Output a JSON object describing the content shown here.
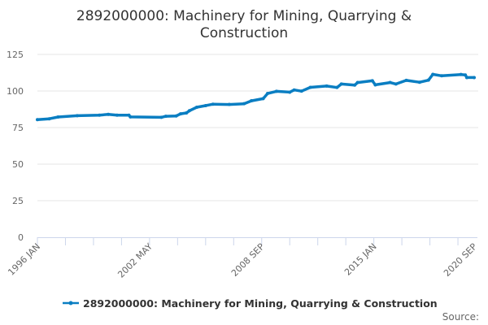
{
  "chart_data": {
    "type": "line",
    "title_lines": [
      "2892000000: Machinery for Mining, Quarrying &",
      "Construction"
    ],
    "xlabel": "",
    "ylabel": "",
    "ylim": [
      0,
      125
    ],
    "yticks": [
      0,
      25,
      50,
      75,
      100,
      125
    ],
    "xrange": [
      "1996-01",
      "2020-09"
    ],
    "xticks": [
      {
        "date": "1996-01",
        "label": "1996 JAN"
      },
      {
        "date": "2002-05",
        "label": "2002 MAY"
      },
      {
        "date": "2008-09",
        "label": "2008 SEP"
      },
      {
        "date": "2015-01",
        "label": "2015 JAN"
      },
      {
        "date": "2020-09",
        "label": "2020 SEP"
      }
    ],
    "grid": true,
    "legend_position": "bottom",
    "series": [
      {
        "name": "2892000000: Machinery for Mining, Quarrying & Construction",
        "color": "#0a7ec2",
        "points": [
          [
            "1996-01",
            80.4
          ],
          [
            "1996-09",
            81.0
          ],
          [
            "1997-03",
            82.2
          ],
          [
            "1998-04",
            83.1
          ],
          [
            "1999-07",
            83.5
          ],
          [
            "2000-01",
            84.0
          ],
          [
            "2000-07",
            83.5
          ],
          [
            "2001-03",
            83.5
          ],
          [
            "2001-04",
            82.3
          ],
          [
            "2003-01",
            82.0
          ],
          [
            "2003-04",
            82.7
          ],
          [
            "2003-11",
            82.9
          ],
          [
            "2004-02",
            84.4
          ],
          [
            "2004-06",
            85.0
          ],
          [
            "2004-08",
            86.5
          ],
          [
            "2005-01",
            88.9
          ],
          [
            "2005-07",
            90.0
          ],
          [
            "2005-12",
            91.0
          ],
          [
            "2006-11",
            90.8
          ],
          [
            "2007-09",
            91.3
          ],
          [
            "2008-02",
            93.3
          ],
          [
            "2008-10",
            94.8
          ],
          [
            "2009-01",
            98.3
          ],
          [
            "2009-07",
            99.8
          ],
          [
            "2010-04",
            99.2
          ],
          [
            "2010-07",
            100.7
          ],
          [
            "2010-12",
            99.9
          ],
          [
            "2011-06",
            102.5
          ],
          [
            "2012-05",
            103.4
          ],
          [
            "2012-12",
            102.4
          ],
          [
            "2013-03",
            104.8
          ],
          [
            "2013-12",
            104.0
          ],
          [
            "2014-02",
            105.8
          ],
          [
            "2014-12",
            107.0
          ],
          [
            "2015-02",
            104.2
          ],
          [
            "2015-12",
            105.8
          ],
          [
            "2016-04",
            104.8
          ],
          [
            "2016-11",
            107.3
          ],
          [
            "2017-08",
            106.0
          ],
          [
            "2018-02",
            107.4
          ],
          [
            "2018-05",
            111.4
          ],
          [
            "2018-11",
            110.4
          ],
          [
            "2019-12",
            111.3
          ],
          [
            "2020-03",
            111.0
          ],
          [
            "2020-04",
            109.2
          ],
          [
            "2020-09",
            109.2
          ]
        ]
      }
    ],
    "source_label": "Source:"
  }
}
